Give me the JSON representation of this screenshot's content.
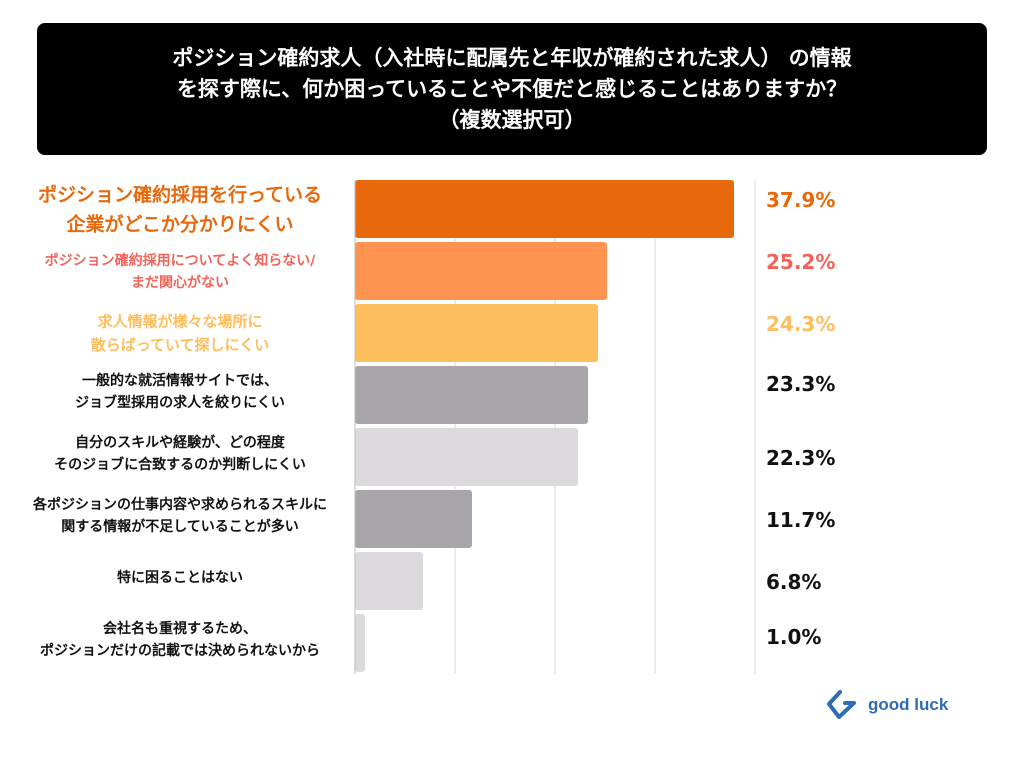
{
  "chart_data": {
    "type": "bar",
    "orientation": "horizontal",
    "title_lines": [
      "ポジション確約求人（入社時に配属先と年収が確約された求人） の情報",
      "を探す際に、何か困っていることや不便だと感じることはありますか？",
      "（複数選択可）"
    ],
    "categories": [
      [
        "ポジション確約採用を行っている",
        "企業がどこか分かりにくい"
      ],
      [
        "ポジション確約採用についてよく知らない/",
        "まだ関心がない"
      ],
      [
        "求人情報が様々な場所に",
        "散らばっていて探しにくい"
      ],
      [
        "一般的な就活情報サイトでは、",
        "ジョブ型採用の求人を絞りにくい"
      ],
      [
        "自分のスキルや経験が、どの程度",
        "そのジョブに合致するのか判断しにくい"
      ],
      [
        "各ポジションの仕事内容や求められるスキルに",
        "関する情報が不足していることが多い"
      ],
      [
        "特に困ることはない"
      ],
      [
        "会社名も重視するため、",
        "ポジションだけの記載では決められないから"
      ]
    ],
    "values": [
      37.9,
      25.2,
      24.3,
      23.3,
      22.3,
      11.7,
      6.8,
      1.0
    ],
    "value_labels": [
      "37.9%",
      "25.2%",
      "24.3%",
      "23.3%",
      "22.3%",
      "11.7%",
      "6.8%",
      "1.0%"
    ],
    "bar_colors": [
      "#E8690B",
      "#FF9450",
      "#FFBE5E",
      "#A8A6AB",
      "#DCDADD",
      "#A8A6AB",
      "#DCDADD",
      "#DCDADD"
    ],
    "label_colors": [
      "#E8690B",
      "#F2645A",
      "#FFBE5E",
      "#111111",
      "#111111",
      "#111111",
      "#111111",
      "#111111"
    ],
    "xlim": [
      0,
      40
    ],
    "grid": true,
    "gridlines": [
      10,
      20,
      30,
      40
    ]
  },
  "logo": {
    "text": "good luck",
    "color": "#2E6DB4"
  }
}
